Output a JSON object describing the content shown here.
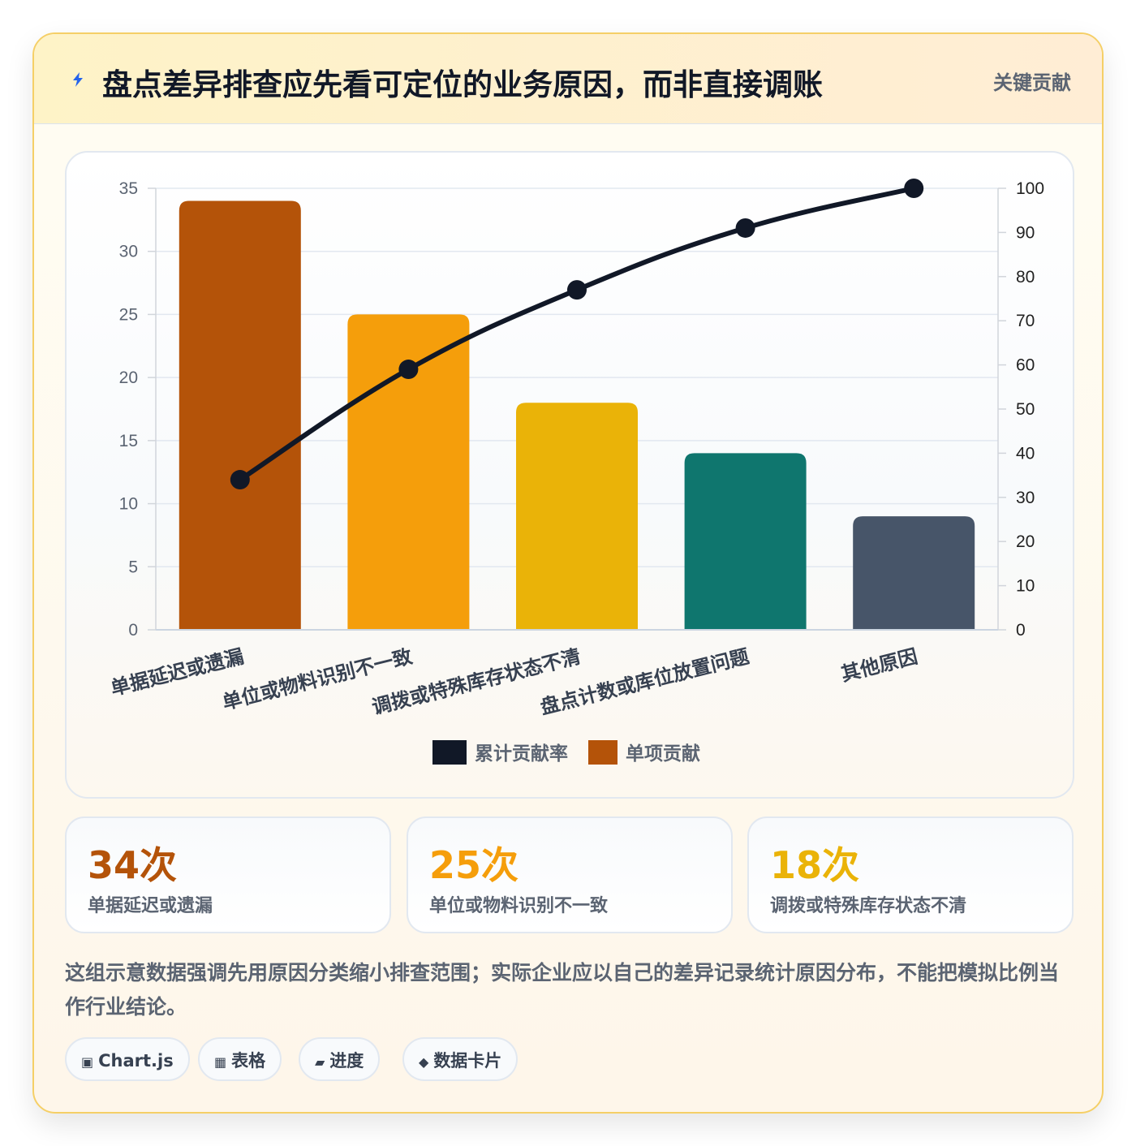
{
  "header": {
    "title": "盘点差异排查应先看可定位的业务原因，而非直接调账",
    "tag": "关键贡献"
  },
  "chart_data": {
    "type": "bar",
    "categories": [
      "单据延迟或遗漏",
      "单位或物料识别不一致",
      "调拨或特殊库存状态不清",
      "盘点计数或库位放置问题",
      "其他原因"
    ],
    "series": [
      {
        "name": "单项贡献",
        "type": "bar",
        "axis": "left",
        "values": [
          34,
          25,
          18,
          14,
          9
        ]
      },
      {
        "name": "累计贡献率",
        "type": "line",
        "axis": "right",
        "values": [
          34,
          59,
          77,
          91,
          100
        ]
      }
    ],
    "bar_colors": [
      "#b45309",
      "#f59e0b",
      "#eab308",
      "#0f766e",
      "#475569"
    ],
    "line_color": "#111827",
    "ylim_left": [
      0,
      35
    ],
    "yticks_left": [
      0,
      5,
      10,
      15,
      20,
      25,
      30,
      35
    ],
    "ylim_right": [
      0,
      100
    ],
    "yticks_right": [
      0,
      10,
      20,
      30,
      40,
      50,
      60,
      70,
      80,
      90,
      100
    ],
    "grid": true,
    "legend_position": "bottom",
    "legend": [
      "累计贡献率",
      "单项贡献"
    ]
  },
  "stats": [
    {
      "value": "34次",
      "label": "单据延迟或遗漏",
      "color": "#b45309"
    },
    {
      "value": "25次",
      "label": "单位或物料识别不一致",
      "color": "#f59e0b"
    },
    {
      "value": "18次",
      "label": "调拨或特殊库存状态不清",
      "color": "#eab308"
    }
  ],
  "note": "这组示意数据强调先用原因分类缩小排查范围；实际企业应以自己的差异记录统计原因分布，不能把模拟比例当作行业结论。",
  "chips": [
    {
      "icon": "▣",
      "label": "Chart.js"
    },
    {
      "icon": "▦",
      "label": "表格"
    },
    {
      "icon": "▰",
      "label": "进度"
    },
    {
      "icon": "◆",
      "label": "数据卡片"
    }
  ]
}
